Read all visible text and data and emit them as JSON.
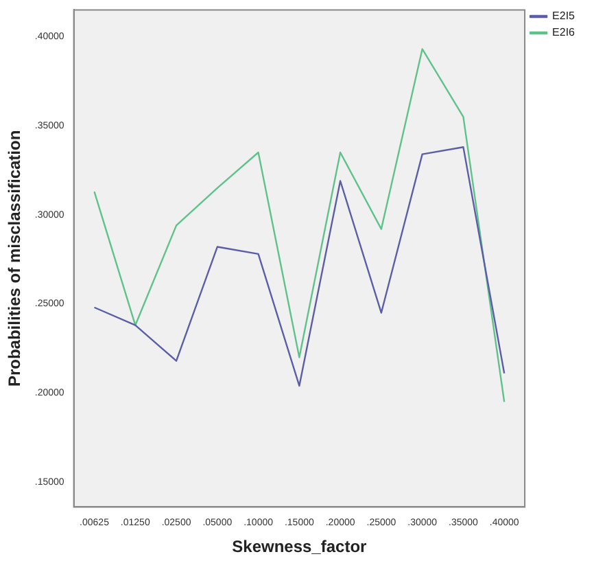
{
  "chart_data": {
    "type": "line",
    "xlabel": "Skewness_factor",
    "ylabel": "Probabilities of misclassification",
    "categories": [
      ".00625",
      ".01250",
      ".02500",
      ".05000",
      ".10000",
      ".15000",
      ".20000",
      ".25000",
      ".30000",
      ".35000",
      ".40000"
    ],
    "series": [
      {
        "name": "E2I5",
        "color": "#5b5ea6",
        "values": [
          0.248,
          0.238,
          0.218,
          0.282,
          0.278,
          0.204,
          0.319,
          0.245,
          0.334,
          0.338,
          0.211
        ]
      },
      {
        "name": "E2I6",
        "color": "#5fc28a",
        "values": [
          0.313,
          0.238,
          0.294,
          0.315,
          0.335,
          0.22,
          0.335,
          0.292,
          0.393,
          0.355,
          0.195
        ]
      }
    ],
    "ylim": [
      0.136,
      0.415
    ],
    "yticks": [
      {
        "value": 0.15,
        "label": ".15000"
      },
      {
        "value": 0.2,
        "label": ".20000"
      },
      {
        "value": 0.25,
        "label": ".25000"
      },
      {
        "value": 0.3,
        "label": ".30000"
      },
      {
        "value": 0.35,
        "label": ".35000"
      },
      {
        "value": 0.4,
        "label": ".40000"
      }
    ],
    "grid": false,
    "legend": "top right",
    "marker": "none",
    "line_style": "solid"
  }
}
